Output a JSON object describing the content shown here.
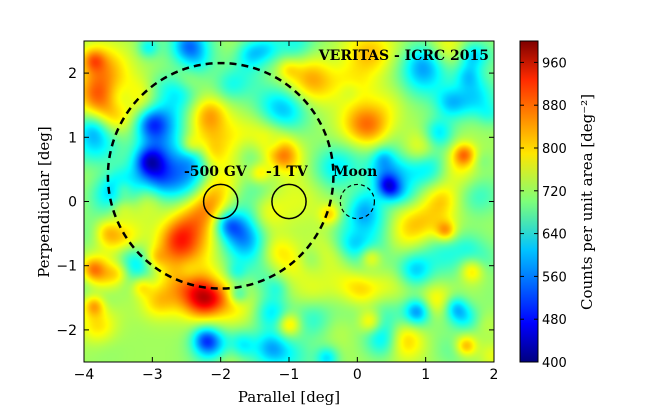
{
  "chart_data": {
    "type": "heatmap",
    "title": "VERITAS - ICRC 2015",
    "xlabel": "Parallel [deg]",
    "ylabel": "Perpendicular [deg]",
    "xlim": [
      -4,
      2
    ],
    "ylim": [
      -2.5,
      2.5
    ],
    "xticks": [
      "−4",
      "−3",
      "−2",
      "−1",
      "0",
      "1",
      "2"
    ],
    "xtick_values": [
      -4,
      -3,
      -2,
      -1,
      0,
      1,
      2
    ],
    "yticks": [
      "−2",
      "−1",
      "0",
      "1",
      "2"
    ],
    "ytick_values": [
      -2,
      -1,
      0,
      1,
      2
    ],
    "colorbar": {
      "label": "Counts per unit area [deg⁻²]",
      "range": [
        400,
        1000
      ],
      "ticks": [
        "400",
        "480",
        "560",
        "640",
        "720",
        "800",
        "880",
        "960"
      ],
      "tick_values": [
        400,
        480,
        560,
        640,
        720,
        800,
        880,
        960
      ],
      "colormap": "jet"
    },
    "annotations": [
      {
        "label": "-500 GV",
        "x": -2.0,
        "y": 0.0,
        "radius_deg": 0.25,
        "style": "solid"
      },
      {
        "label": "-1 TV",
        "x": -1.0,
        "y": 0.0,
        "radius_deg": 0.25,
        "style": "solid"
      },
      {
        "label": "Moon",
        "x": 0.0,
        "y": 0.0,
        "radius_deg": 0.25,
        "style": "dashed"
      },
      {
        "label": "",
        "x": -2.0,
        "y": 0.4,
        "radius_deg": 1.65,
        "style": "dashed"
      }
    ],
    "mean_level": 720,
    "peak_max": 1000,
    "trough_min": 420
  }
}
